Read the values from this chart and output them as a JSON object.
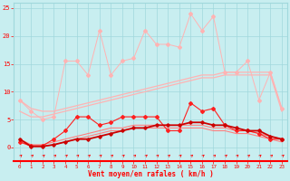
{
  "x": [
    0,
    1,
    2,
    3,
    4,
    5,
    6,
    7,
    8,
    9,
    10,
    11,
    12,
    13,
    14,
    15,
    16,
    17,
    18,
    19,
    20,
    21,
    22,
    23
  ],
  "rafales_y": [
    8.5,
    6.5,
    5.0,
    5.5,
    15.5,
    15.5,
    13.0,
    21.0,
    13.0,
    15.5,
    16.0,
    21.0,
    18.5,
    18.5,
    18.0,
    24.0,
    21.0,
    23.5,
    13.5,
    13.5,
    15.5,
    8.5,
    13.5,
    7.0
  ],
  "vent_moy_y": [
    1.0,
    0.3,
    0.3,
    1.5,
    3.0,
    5.5,
    5.5,
    4.0,
    4.5,
    5.5,
    5.5,
    5.5,
    5.5,
    3.0,
    3.0,
    8.0,
    6.5,
    7.0,
    4.0,
    3.0,
    3.0,
    2.5,
    1.5,
    1.5
  ],
  "curve_a1": [
    1.5,
    0.2,
    0.2,
    0.5,
    1.0,
    1.5,
    1.5,
    2.0,
    2.5,
    3.0,
    3.5,
    3.5,
    4.0,
    4.0,
    4.0,
    4.5,
    4.5,
    4.0,
    4.0,
    3.5,
    3.0,
    3.0,
    2.0,
    1.5
  ],
  "smooth_upper1": [
    8.5,
    7.0,
    6.5,
    6.5,
    7.0,
    7.5,
    8.0,
    8.5,
    9.0,
    9.5,
    10.0,
    10.5,
    11.0,
    11.5,
    12.0,
    12.5,
    13.0,
    13.0,
    13.5,
    13.5,
    13.5,
    13.5,
    13.5,
    7.0
  ],
  "smooth_upper2": [
    6.5,
    5.5,
    5.5,
    6.0,
    6.5,
    7.0,
    7.5,
    8.0,
    8.5,
    9.0,
    9.5,
    10.0,
    10.5,
    11.0,
    11.5,
    12.0,
    12.5,
    12.5,
    13.0,
    13.0,
    13.0,
    13.0,
    13.0,
    6.5
  ],
  "smooth_lower1": [
    1.5,
    0.5,
    0.5,
    1.0,
    1.5,
    2.0,
    2.5,
    3.0,
    3.5,
    3.5,
    4.0,
    4.0,
    4.0,
    4.0,
    4.0,
    4.0,
    4.0,
    3.5,
    3.5,
    3.0,
    3.0,
    2.5,
    2.0,
    1.5
  ],
  "smooth_lower2": [
    1.0,
    0.2,
    0.2,
    0.5,
    1.0,
    1.5,
    2.0,
    2.5,
    3.0,
    3.0,
    3.5,
    3.5,
    3.5,
    3.5,
    3.5,
    3.5,
    3.5,
    3.0,
    3.0,
    2.5,
    2.5,
    2.0,
    1.5,
    1.0
  ],
  "color_light_pink": "#FFB3B3",
  "color_medium_pink": "#FF8080",
  "color_red": "#FF2020",
  "color_dark_red": "#CC0000",
  "background_color": "#C8EEF0",
  "grid_color": "#A0D8DC",
  "xlabel": "Vent moyen/en rafales ( km/h )",
  "ylim": [
    -2.5,
    26
  ],
  "xlim": [
    -0.5,
    23.5
  ],
  "yticks": [
    0,
    5,
    10,
    15,
    20,
    25
  ],
  "xticks": [
    0,
    1,
    2,
    3,
    4,
    5,
    6,
    7,
    8,
    9,
    10,
    11,
    12,
    13,
    14,
    15,
    16,
    17,
    18,
    19,
    20,
    21,
    22,
    23
  ]
}
